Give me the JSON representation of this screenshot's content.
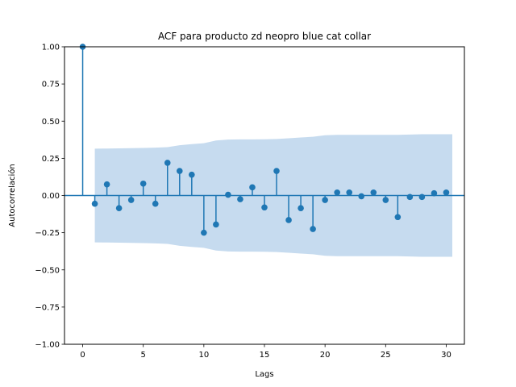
{
  "chart_data": {
    "type": "stem",
    "title": "ACF para producto zd neopro blue cat collar",
    "xlabel": "Lags",
    "ylabel": "Autocorrelación",
    "xlim": [
      -1.5,
      31.5
    ],
    "ylim": [
      -1.0,
      1.0
    ],
    "xticks": [
      0,
      5,
      10,
      15,
      20,
      25,
      30
    ],
    "yticks": [
      -1.0,
      -0.75,
      -0.5,
      -0.25,
      0.0,
      0.25,
      0.5,
      0.75,
      1.0
    ],
    "ytick_labels": [
      "−1.00",
      "−0.75",
      "−0.50",
      "−0.25",
      "0.00",
      "0.25",
      "0.50",
      "0.75",
      "1.00"
    ],
    "grid": false,
    "colors": {
      "stem": "#1f77b4",
      "band": "#c6dbef"
    },
    "lags": [
      0,
      1,
      2,
      3,
      4,
      5,
      6,
      7,
      8,
      9,
      10,
      11,
      12,
      13,
      14,
      15,
      16,
      17,
      18,
      19,
      20,
      21,
      22,
      23,
      24,
      25,
      26,
      27,
      28,
      29,
      30
    ],
    "values": [
      1.0,
      -0.055,
      0.075,
      -0.085,
      -0.03,
      0.08,
      -0.055,
      0.22,
      0.165,
      0.14,
      -0.25,
      -0.195,
      0.005,
      -0.025,
      0.055,
      -0.08,
      0.165,
      -0.165,
      -0.085,
      -0.225,
      -0.03,
      0.02,
      0.02,
      -0.005,
      0.02,
      -0.03,
      -0.145,
      -0.01,
      -0.01,
      0.015,
      0.02
    ],
    "confidence_band": {
      "lags": [
        1,
        2,
        3,
        4,
        5,
        6,
        7,
        8,
        9,
        10,
        11,
        12,
        13,
        14,
        15,
        16,
        17,
        18,
        19,
        20,
        21,
        22,
        23,
        24,
        25,
        26,
        27,
        28,
        29,
        30.5
      ],
      "upper": [
        0.315,
        0.316,
        0.317,
        0.318,
        0.32,
        0.322,
        0.325,
        0.338,
        0.345,
        0.352,
        0.37,
        0.376,
        0.377,
        0.377,
        0.378,
        0.38,
        0.385,
        0.39,
        0.395,
        0.405,
        0.408,
        0.408,
        0.408,
        0.408,
        0.408,
        0.408,
        0.41,
        0.412,
        0.412,
        0.412
      ]
    }
  }
}
